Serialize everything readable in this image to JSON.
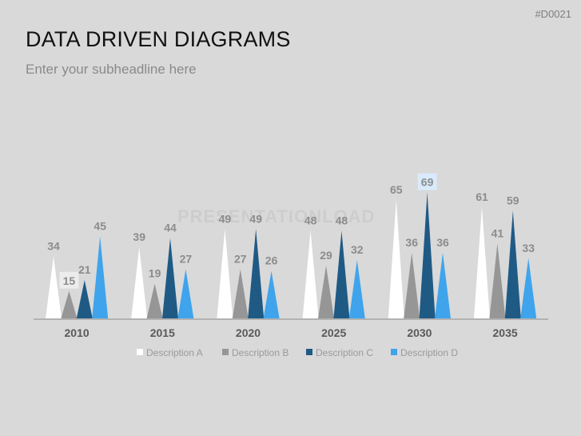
{
  "slide": {
    "id": "#D0021",
    "title": "DATA DRIVEN DIAGRAMS",
    "subtitle": "Enter your subheadline here",
    "watermark": "PRESENTATIONLOAD"
  },
  "chart_data": {
    "type": "bar",
    "bar_style": "spike",
    "categories": [
      "2010",
      "2015",
      "2020",
      "2025",
      "2030",
      "2035"
    ],
    "series": [
      {
        "name": "Description A",
        "color": "#ffffff",
        "values": [
          34,
          39,
          49,
          48,
          65,
          61
        ]
      },
      {
        "name": "Description B",
        "color": "#969696",
        "values": [
          15,
          19,
          27,
          29,
          36,
          41
        ]
      },
      {
        "name": "Description C",
        "color": "#1f5a85",
        "values": [
          21,
          44,
          49,
          48,
          69,
          59
        ]
      },
      {
        "name": "Description D",
        "color": "#3fa4ec",
        "values": [
          45,
          27,
          26,
          32,
          36,
          33
        ]
      }
    ],
    "highlights": [
      {
        "series": 1,
        "category": 0,
        "box": "#ececec"
      },
      {
        "series": 2,
        "category": 4,
        "box": "#d8eafb"
      }
    ],
    "ylim": [
      0,
      69
    ],
    "grid": false,
    "legend": "bottom",
    "axis_color": "#a6a6a6",
    "label_color": "#8c8c8c"
  }
}
